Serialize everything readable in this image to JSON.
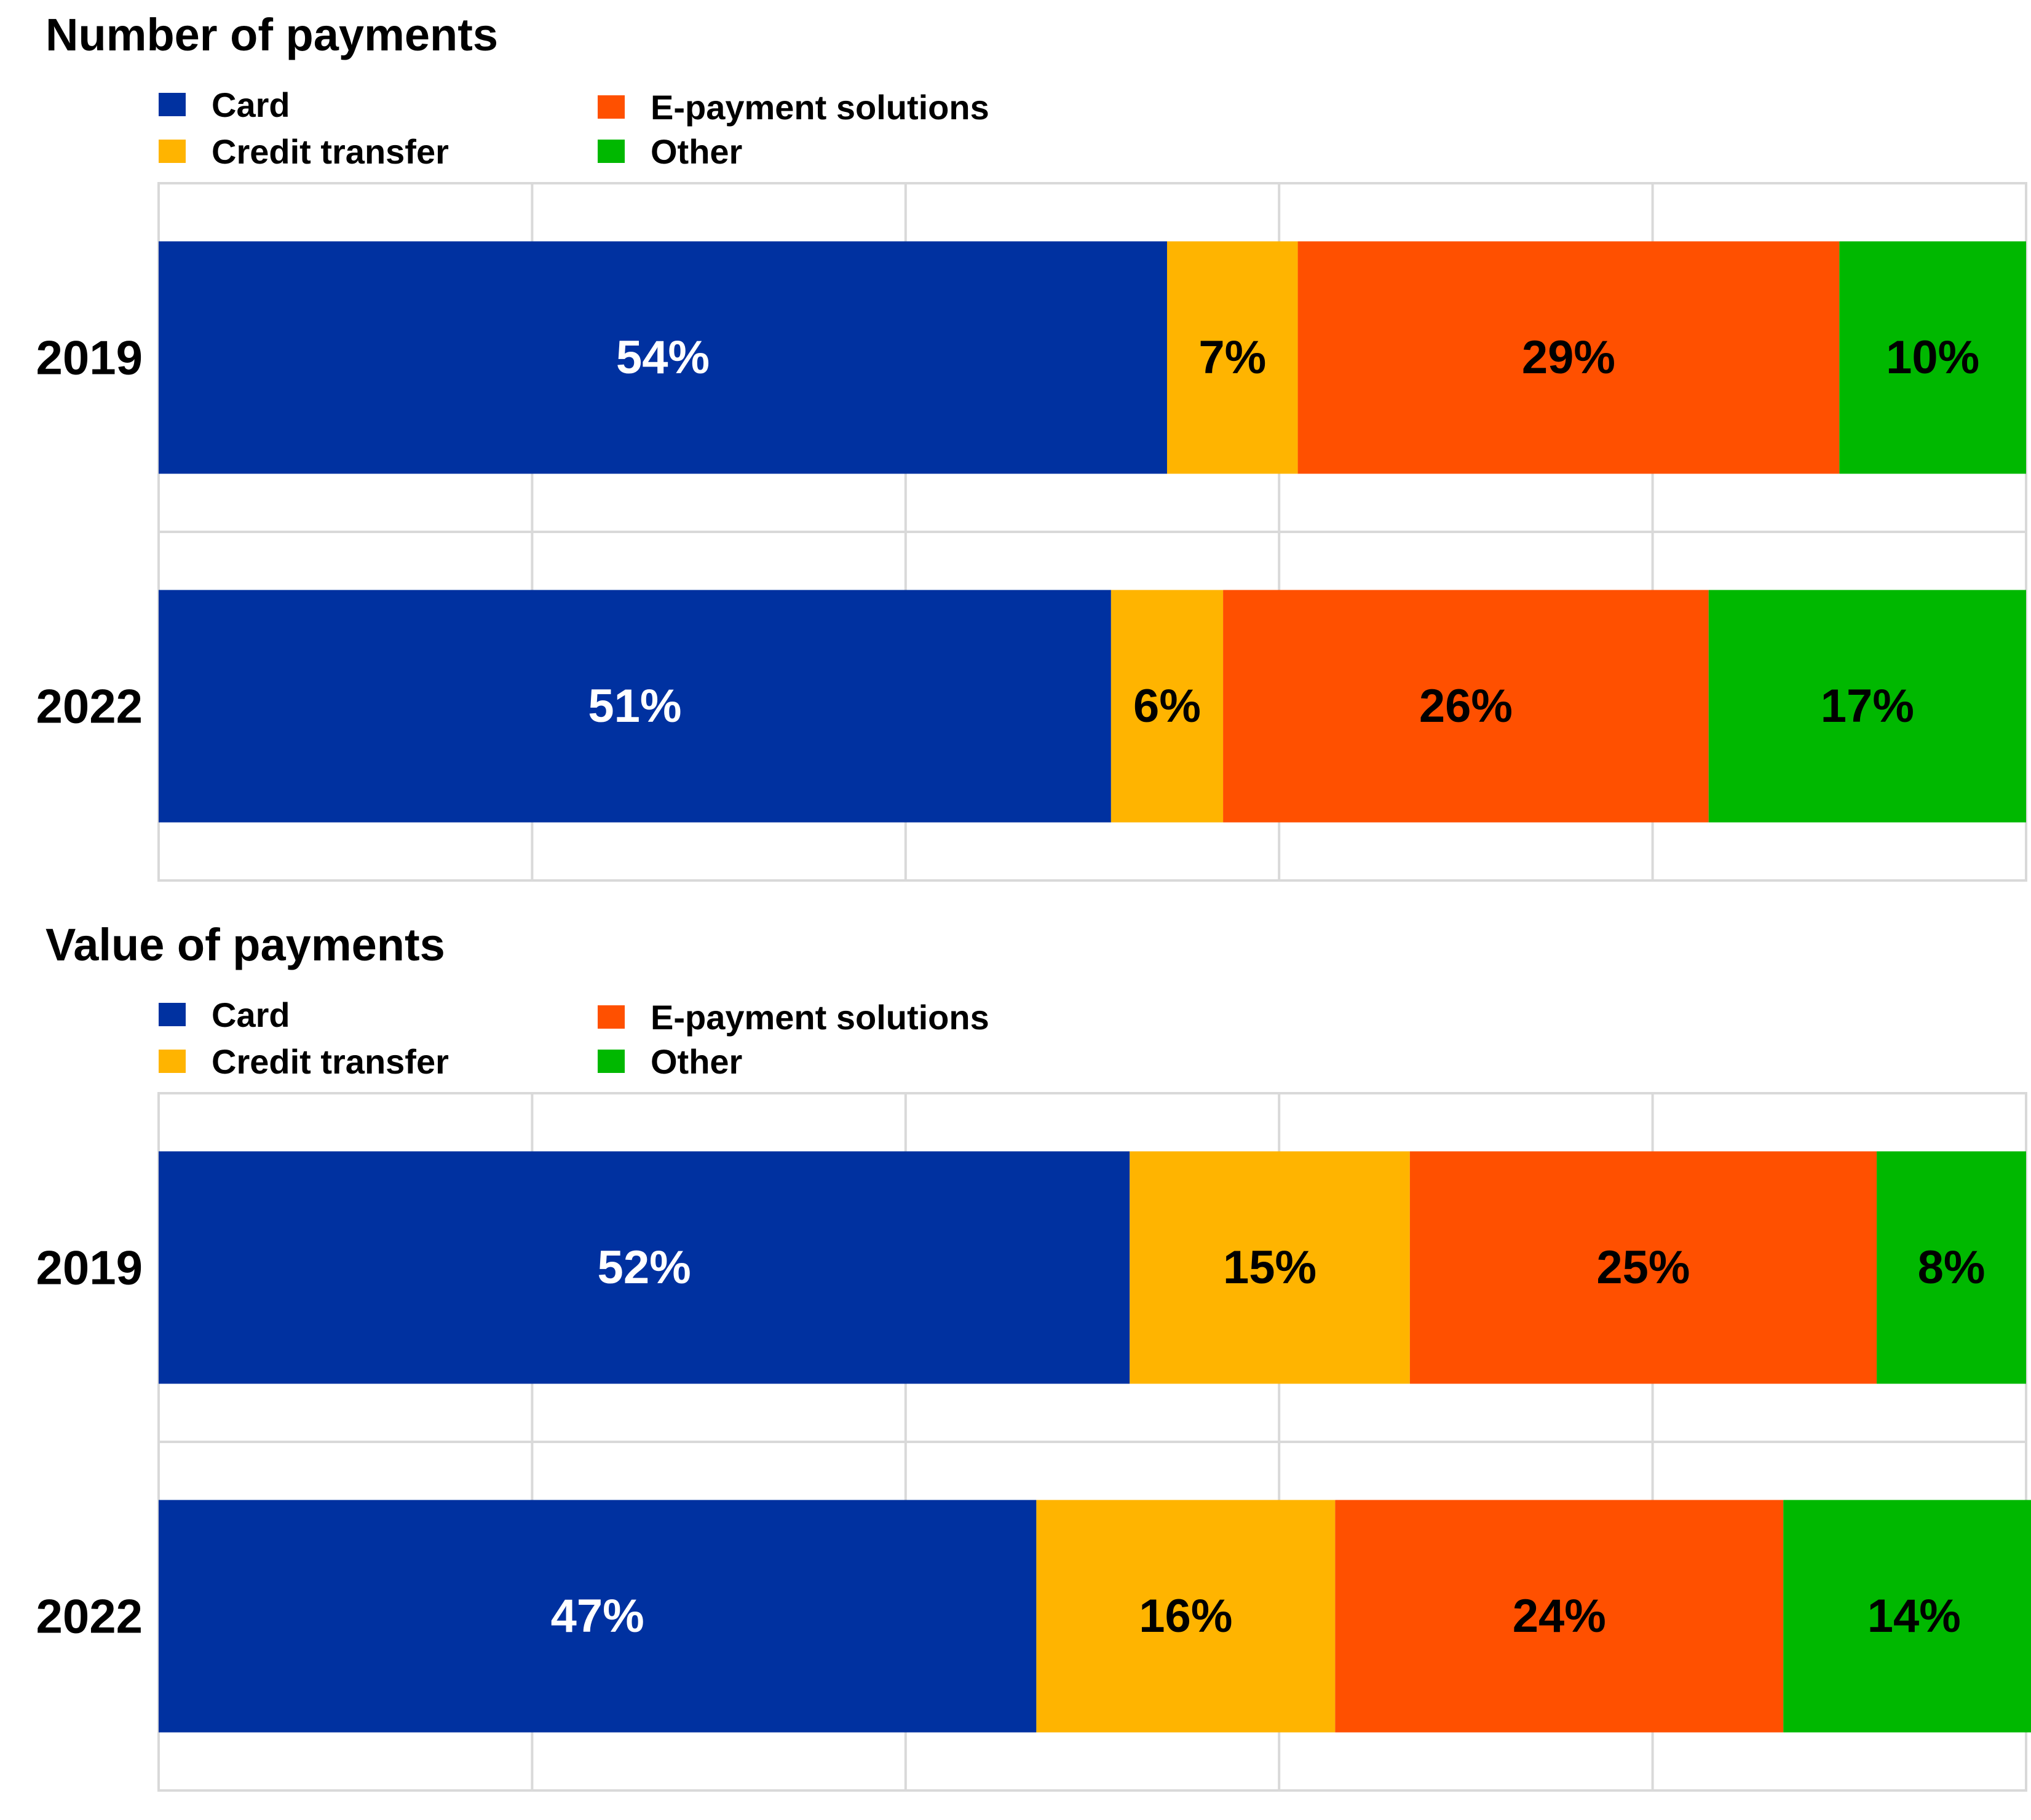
{
  "colors": {
    "card": "#0031A0",
    "credit_transfer": "#FFB400",
    "e_payment": "#FF5000",
    "other": "#00B800",
    "grid": "#D9D9D9"
  },
  "chart_data": [
    {
      "type": "bar",
      "orientation": "horizontal",
      "stacked": true,
      "title": "Number of payments",
      "categories": [
        "2019",
        "2022"
      ],
      "series": [
        {
          "name": "Card",
          "color_key": "card",
          "values": [
            54,
            51
          ],
          "labels": [
            "54%",
            "51%"
          ],
          "label_color": "#FFFFFF"
        },
        {
          "name": "Credit transfer",
          "color_key": "credit_transfer",
          "values": [
            7,
            6
          ],
          "labels": [
            "7%",
            "6%"
          ],
          "label_color": "#000000"
        },
        {
          "name": "E-payment solutions",
          "color_key": "e_payment",
          "values": [
            29,
            26
          ],
          "labels": [
            "29%",
            "26%"
          ],
          "label_color": "#000000"
        },
        {
          "name": "Other",
          "color_key": "other",
          "values": [
            10,
            17
          ],
          "labels": [
            "10%",
            "17%"
          ],
          "label_color": "#000000"
        }
      ],
      "xlim": [
        0,
        100
      ],
      "grid": true,
      "legend_position": "top-left"
    },
    {
      "type": "bar",
      "orientation": "horizontal",
      "stacked": true,
      "title": "Value of payments",
      "categories": [
        "2019",
        "2022"
      ],
      "series": [
        {
          "name": "Card",
          "color_key": "card",
          "values": [
            52,
            47
          ],
          "labels": [
            "52%",
            "47%"
          ],
          "label_color": "#FFFFFF"
        },
        {
          "name": "Credit transfer",
          "color_key": "credit_transfer",
          "values": [
            15,
            16
          ],
          "labels": [
            "15%",
            "16%"
          ],
          "label_color": "#000000"
        },
        {
          "name": "E-payment solutions",
          "color_key": "e_payment",
          "values": [
            25,
            24
          ],
          "labels": [
            "25%",
            "24%"
          ],
          "label_color": "#000000"
        },
        {
          "name": "Other",
          "color_key": "other",
          "values": [
            8,
            14
          ],
          "labels": [
            "8%",
            "14%"
          ],
          "label_color": "#000000"
        }
      ],
      "xlim": [
        0,
        100
      ],
      "grid": true,
      "legend_position": "top-left"
    }
  ]
}
